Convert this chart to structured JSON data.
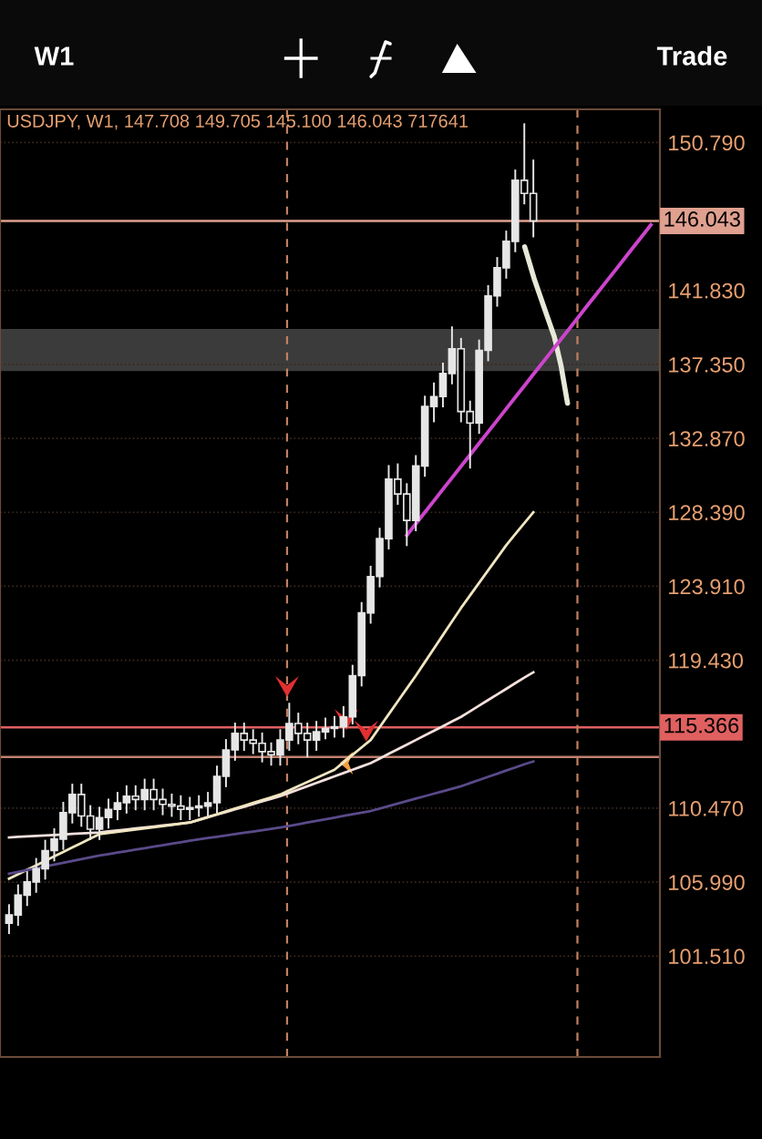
{
  "chart_data": {
    "type": "candlestick",
    "title": "USDJPY, W1, 147.708 149.705 145.100 146.043 717641",
    "annotations": [
      "W1",
      "Trade"
    ],
    "categories": [
      null,
      null,
      null,
      null,
      null,
      null,
      null,
      null,
      null,
      null,
      null,
      null,
      null,
      null,
      null,
      null,
      null,
      null,
      null,
      null,
      null,
      null,
      null,
      null,
      null,
      null,
      null,
      null,
      null,
      null,
      null,
      null,
      null,
      null,
      null,
      null,
      null,
      null,
      null,
      null,
      null,
      null,
      null,
      null,
      null,
      null,
      null,
      null,
      null,
      null,
      null,
      null,
      null,
      null,
      null,
      null,
      null,
      null,
      null,
      null,
      null,
      null,
      null,
      null,
      null,
      null,
      null,
      null,
      null,
      null,
      null,
      null
    ],
    "ylim": [
      95.4,
      152.8
    ],
    "yticks": [
      {
        "value": 150.79,
        "label": "150.790"
      },
      {
        "value": 141.83,
        "label": "141.830"
      },
      {
        "value": 137.35,
        "label": "137.350"
      },
      {
        "value": 132.87,
        "label": "132.870"
      },
      {
        "value": 128.39,
        "label": "128.390"
      },
      {
        "value": 123.91,
        "label": "123.910"
      },
      {
        "value": 119.43,
        "label": "119.430"
      },
      {
        "value": 110.47,
        "label": "110.470"
      },
      {
        "value": 105.99,
        "label": "105.990"
      },
      {
        "value": 101.51,
        "label": "101.510"
      }
    ],
    "tick_labels": "y",
    "grid": "y",
    "ref_lines": [
      {
        "axis": "y",
        "value": 146.043,
        "label": "146.043",
        "color": "#e0a090"
      },
      {
        "axis": "y",
        "value": 115.366,
        "label": "115.366",
        "color": "#e06060"
      },
      {
        "axis": "y",
        "value": 113.57,
        "label": null,
        "color": "#c08070"
      }
    ],
    "bands": [
      {
        "axis": "y",
        "from": 136.95,
        "to": 139.5,
        "label": null,
        "color": "#4a4a4a"
      }
    ],
    "series": [
      {
        "type": "line",
        "color": "#f4e0dc",
        "values": [
          108.7,
          108.73,
          108.76,
          108.79,
          108.82,
          108.85,
          108.88,
          108.91,
          108.94,
          108.97,
          109.0,
          109.06,
          109.12,
          109.18,
          109.24,
          109.3,
          109.36,
          109.42,
          109.48,
          109.54,
          109.6,
          109.76,
          109.92,
          110.08,
          110.24,
          110.4,
          110.56,
          110.72,
          110.88,
          111.04,
          111.2,
          111.4,
          111.6,
          111.8,
          112.0,
          112.2,
          112.4,
          112.6,
          112.8,
          113.0,
          113.2,
          113.48,
          113.76,
          114.04,
          114.32,
          114.6,
          114.88,
          115.16,
          115.44,
          115.72,
          116.0,
          116.34,
          116.68,
          117.02,
          117.36,
          117.7,
          118.04,
          118.38,
          118.7,
          null,
          null,
          null,
          null,
          null,
          null,
          null,
          null,
          null,
          null,
          null,
          null,
          null
        ]
      },
      {
        "type": "line",
        "color": "#f0e6c0",
        "values": [
          106.2,
          106.47,
          106.74,
          107.01,
          107.28,
          107.55,
          107.82,
          108.09,
          108.36,
          108.63,
          108.9,
          108.97,
          109.04,
          109.11,
          109.18,
          109.25,
          109.32,
          109.39,
          109.46,
          109.53,
          109.6,
          109.77,
          109.94,
          110.11,
          110.28,
          110.45,
          110.62,
          110.79,
          110.96,
          111.13,
          111.3,
          111.55,
          111.8,
          112.05,
          112.3,
          112.55,
          112.8,
          113.25,
          113.7,
          114.15,
          114.6,
          115.38,
          116.16,
          116.94,
          117.72,
          118.5,
          119.32,
          120.14,
          120.96,
          121.78,
          122.6,
          123.36,
          124.12,
          124.88,
          125.64,
          126.4,
          127.07,
          127.74,
          128.4,
          null,
          null,
          null,
          null,
          null,
          null,
          null,
          null,
          null,
          null,
          null,
          null,
          null
        ]
      },
      {
        "type": "line",
        "color": "#5a4a8a",
        "values": [
          106.5,
          106.61,
          106.72,
          106.83,
          106.94,
          107.05,
          107.16,
          107.27,
          107.38,
          107.49,
          107.6,
          107.69,
          107.78,
          107.87,
          107.96,
          108.05,
          108.14,
          108.23,
          108.32,
          108.41,
          108.5,
          108.58,
          108.66,
          108.74,
          108.82,
          108.9,
          108.98,
          109.06,
          109.14,
          109.22,
          109.3,
          109.4,
          109.5,
          109.6,
          109.7,
          109.8,
          109.9,
          110.0,
          110.1,
          110.2,
          110.3,
          110.45,
          110.6,
          110.75,
          110.9,
          111.05,
          111.2,
          111.35,
          111.5,
          111.65,
          111.8,
          111.99,
          112.18,
          112.37,
          112.56,
          112.75,
          112.94,
          113.13,
          113.3,
          null,
          null,
          null,
          null,
          null,
          null,
          null,
          null,
          null,
          null,
          null,
          null,
          null
        ]
      },
      {
        "type": "line",
        "color": "#cc44cc",
        "values": [
          null,
          null,
          null,
          null,
          null,
          null,
          null,
          null,
          null,
          null,
          null,
          null,
          null,
          null,
          null,
          null,
          null,
          null,
          null,
          null,
          null,
          null,
          null,
          null,
          null,
          null,
          null,
          null,
          null,
          null,
          null,
          null,
          null,
          null,
          null,
          null,
          null,
          null,
          null,
          null,
          null,
          null,
          null,
          null,
          127.0,
          127.7,
          128.39,
          129.09,
          129.79,
          130.48,
          131.18,
          131.87,
          132.57,
          133.27,
          133.96,
          134.66,
          135.36,
          136.05,
          136.75,
          137.44,
          138.14,
          138.84,
          139.53,
          140.23,
          140.93,
          141.62,
          142.32,
          143.01,
          143.71,
          144.41,
          145.1,
          145.8
        ]
      },
      {
        "type": "candlestick",
        "color": "#e6e6e6",
        "ohlc": [
          [
            103.5,
            104.6,
            102.9,
            104.0
          ],
          [
            104.0,
            105.8,
            103.4,
            105.2
          ],
          [
            105.2,
            106.6,
            104.6,
            106.0
          ],
          [
            106.0,
            107.4,
            105.4,
            106.8
          ],
          [
            106.8,
            108.5,
            106.2,
            107.9
          ],
          [
            107.9,
            109.2,
            107.3,
            108.6
          ],
          [
            108.6,
            110.8,
            108.0,
            110.2
          ],
          [
            110.2,
            111.9,
            109.6,
            111.3
          ],
          [
            111.3,
            111.9,
            109.4,
            110.0
          ],
          [
            110.0,
            110.6,
            108.6,
            109.2
          ],
          [
            109.2,
            110.5,
            108.6,
            109.9
          ],
          [
            109.9,
            111.0,
            109.3,
            110.4
          ],
          [
            110.4,
            111.4,
            109.8,
            110.8
          ],
          [
            110.8,
            111.8,
            110.2,
            111.2
          ],
          [
            111.2,
            111.8,
            110.4,
            111.0
          ],
          [
            111.0,
            112.2,
            110.4,
            111.6
          ],
          [
            111.6,
            112.2,
            110.4,
            111.0
          ],
          [
            111.0,
            111.6,
            110.1,
            110.7
          ],
          [
            110.7,
            111.3,
            110.0,
            110.6
          ],
          [
            110.6,
            111.2,
            109.8,
            110.4
          ],
          [
            110.4,
            111.1,
            109.8,
            110.5
          ],
          [
            110.5,
            111.2,
            110.0,
            110.6
          ],
          [
            110.6,
            111.4,
            110.0,
            110.8
          ],
          [
            110.8,
            113.0,
            110.2,
            112.4
          ],
          [
            112.4,
            114.6,
            111.8,
            114.0
          ],
          [
            114.0,
            115.6,
            113.4,
            115.0
          ],
          [
            115.0,
            115.6,
            114.0,
            114.6
          ],
          [
            114.6,
            115.2,
            113.8,
            114.4
          ],
          [
            114.4,
            115.0,
            113.3,
            113.9
          ],
          [
            113.9,
            114.4,
            113.1,
            113.7
          ],
          [
            113.7,
            115.2,
            113.1,
            114.6
          ],
          [
            114.6,
            116.8,
            114.0,
            115.6
          ],
          [
            115.6,
            116.2,
            114.4,
            115.0
          ],
          [
            115.0,
            115.6,
            113.6,
            114.6
          ],
          [
            114.6,
            115.7,
            114.0,
            115.1
          ],
          [
            115.1,
            115.9,
            114.7,
            115.3
          ],
          [
            115.3,
            116.0,
            114.8,
            115.4
          ],
          [
            115.4,
            116.6,
            114.8,
            116.0
          ],
          [
            116.0,
            119.1,
            115.6,
            118.5
          ],
          [
            118.5,
            122.9,
            117.9,
            122.3
          ],
          [
            122.3,
            125.1,
            121.7,
            124.5
          ],
          [
            124.5,
            127.4,
            123.9,
            126.8
          ],
          [
            126.8,
            131.2,
            126.2,
            130.4
          ],
          [
            130.4,
            131.3,
            128.9,
            129.5
          ],
          [
            129.5,
            130.1,
            126.4,
            127.9
          ],
          [
            127.9,
            131.8,
            127.3,
            131.2
          ],
          [
            131.2,
            135.4,
            130.6,
            134.8
          ],
          [
            134.8,
            136.2,
            133.9,
            135.4
          ],
          [
            135.4,
            137.4,
            134.8,
            136.8
          ],
          [
            136.8,
            139.6,
            136.2,
            138.3
          ],
          [
            138.3,
            138.9,
            133.9,
            134.5
          ],
          [
            134.5,
            135.1,
            131.1,
            133.8
          ],
          [
            133.8,
            138.8,
            133.2,
            138.2
          ],
          [
            138.2,
            142.1,
            137.6,
            141.5
          ],
          [
            141.5,
            143.8,
            140.9,
            143.2
          ],
          [
            143.2,
            145.4,
            142.6,
            144.8
          ],
          [
            144.8,
            149.1,
            144.2,
            148.5
          ],
          [
            148.5,
            151.9,
            147.1,
            147.708
          ],
          [
            147.708,
            149.705,
            145.1,
            146.043
          ],
          null,
          null,
          null,
          null,
          null,
          null,
          null,
          null,
          null,
          null,
          null,
          null,
          null
        ]
      }
    ]
  }
}
